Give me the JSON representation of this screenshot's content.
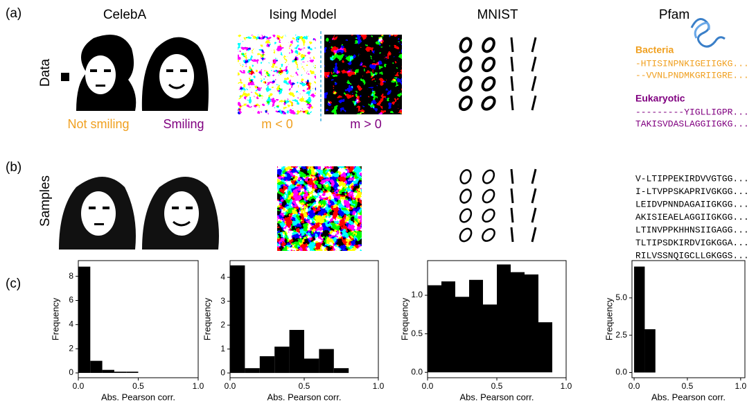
{
  "panel_labels": [
    "(a)",
    "(b)",
    "(c)"
  ],
  "column_titles": [
    "CelebA",
    "Ising Model",
    "MNIST",
    "Pfam"
  ],
  "row_labels": [
    "Data",
    "Samples"
  ],
  "celeba_captions": [
    "Not smiling",
    "Smiling"
  ],
  "ising_captions": [
    "m < 0",
    "m > 0"
  ],
  "pfam": {
    "groups": [
      {
        "name": "Bacteria",
        "sequences": [
          "-HTISINPNKIGEIIGKG...",
          "--VVNLPNDMKGRIIGRE..."
        ]
      },
      {
        "name": "Eukaryotic",
        "sequences": [
          "---------YIGLLIGPR...",
          "TAKISVDASLAGGIIGKG..."
        ]
      }
    ],
    "samples": [
      "V-LTIPPEKIRDVVGTGG...",
      "I-LTVPPSKAPRIVGKGG...",
      "LEIDVPNNDAGAIIGKGG...",
      "AKISIEAELAGGIIGKGG...",
      "LTINVPPKHHNSIIGAGG...",
      "TLTIPSDKIRDVIGKGGA...",
      "RILVSSNQIGCLLGKGGS..."
    ]
  },
  "chart_data": [
    {
      "type": "histogram",
      "xlabel": "Abs. Pearson corr.",
      "ylabel": "Frequency",
      "color": "#000000",
      "bins": [
        0,
        0.1,
        0.2,
        0.3,
        0.4,
        0.5
      ],
      "values": [
        8.8,
        1.0,
        0.25,
        0.1,
        0.1
      ],
      "xlim": [
        0,
        1
      ],
      "ylim": [
        -0.4,
        9.3
      ],
      "xticks": [
        {
          "value": 0,
          "label": "0.0"
        },
        {
          "value": 0.5,
          "label": "0.5"
        },
        {
          "value": 1,
          "label": "1.0"
        }
      ],
      "yticks": [
        0,
        2,
        4,
        6,
        8
      ]
    },
    {
      "type": "histogram",
      "xlabel": "Abs. Pearson corr.",
      "ylabel": "Frequency",
      "color": "#000000",
      "bins": [
        0,
        0.1,
        0.2,
        0.3,
        0.4,
        0.5,
        0.6,
        0.7,
        0.8
      ],
      "values": [
        4.5,
        0.2,
        0.7,
        1.1,
        1.8,
        0.6,
        1.0,
        0.2
      ],
      "xlim": [
        0,
        1
      ],
      "ylim": [
        -0.2,
        4.7
      ],
      "xticks": [
        {
          "value": 0,
          "label": "0.0"
        },
        {
          "value": 0.5,
          "label": "0.5"
        },
        {
          "value": 1,
          "label": "1.0"
        }
      ],
      "yticks": [
        0,
        1,
        2,
        3,
        4
      ]
    },
    {
      "type": "histogram",
      "xlabel": "Abs. Pearson corr.",
      "ylabel": "Frequency",
      "color": "#000000",
      "bins": [
        0,
        0.1,
        0.2,
        0.3,
        0.4,
        0.5,
        0.6,
        0.7,
        0.8,
        0.9
      ],
      "values": [
        1.13,
        1.18,
        0.98,
        1.2,
        0.88,
        1.4,
        1.3,
        1.27,
        0.65
      ],
      "xlim": [
        0,
        1
      ],
      "ylim": [
        -0.07,
        1.45
      ],
      "xticks": [
        {
          "value": 0,
          "label": "0.0"
        },
        {
          "value": 0.5,
          "label": "0.5"
        },
        {
          "value": 1,
          "label": "1.0"
        }
      ],
      "yticks": [
        {
          "value": 0,
          "label": "0.0"
        },
        {
          "value": 0.5,
          "label": "0.5"
        },
        {
          "value": 1,
          "label": "1.0"
        }
      ]
    },
    {
      "type": "histogram",
      "xlabel": "Abs. Pearson corr.",
      "ylabel": "Frequency",
      "color": "#000000",
      "bins": [
        0,
        0.1,
        0.2
      ],
      "values": [
        7.1,
        2.9
      ],
      "xlim": [
        -0.02,
        1.04
      ],
      "ylim": [
        -0.35,
        7.5
      ],
      "xticks": [
        {
          "value": 0,
          "label": "0.0"
        },
        {
          "value": 0.5,
          "label": "0.5"
        },
        {
          "value": 1,
          "label": "1.0"
        }
      ],
      "yticks": [
        {
          "value": 0,
          "label": "0.0"
        },
        {
          "value": 2.5,
          "label": "2.5"
        },
        {
          "value": 5,
          "label": "5.0"
        }
      ]
    }
  ]
}
